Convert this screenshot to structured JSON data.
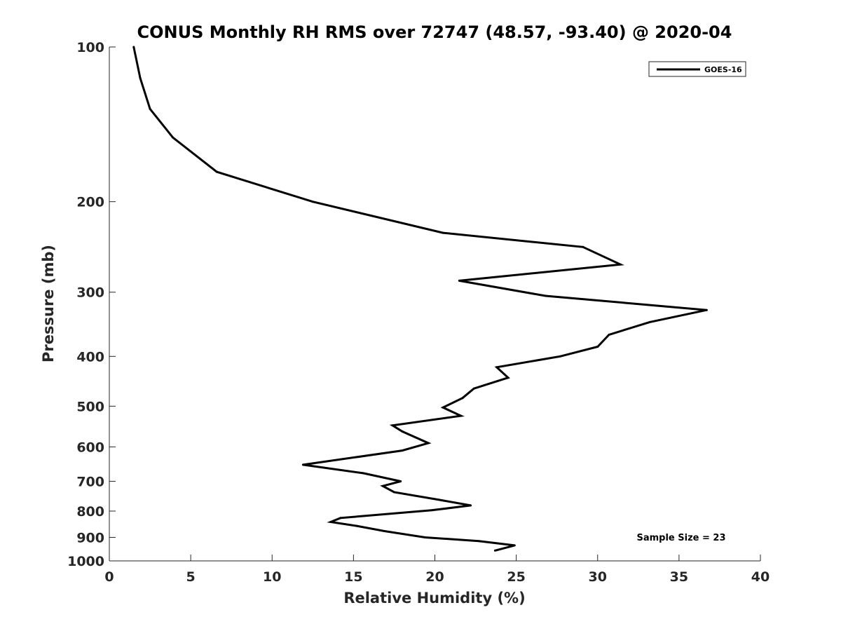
{
  "chart_data": {
    "type": "line",
    "title": "CONUS Monthly RH RMS over 72747 (48.57, -93.40) @ 2020-04",
    "xlabel": "Relative Humidity (%)",
    "ylabel": "Pressure (mb)",
    "xlim": [
      0,
      40
    ],
    "ylim": [
      100,
      1000
    ],
    "y_scale": "log",
    "y_reversed": true,
    "xticks": [
      0,
      5,
      10,
      15,
      20,
      25,
      30,
      35,
      40
    ],
    "yticks": [
      100,
      200,
      300,
      400,
      500,
      600,
      700,
      800,
      900,
      1000
    ],
    "grid": false,
    "legend_placement": "top-right",
    "annotation": "Sample Size = 23",
    "series": [
      {
        "name": "GOES-16",
        "color": "#000000",
        "x": [
          1.5,
          1.9,
          2.5,
          3.9,
          6.6,
          12.5,
          20.5,
          29.1,
          31.4,
          21.5,
          26.8,
          36.7,
          33.2,
          30.7,
          30.0,
          27.7,
          23.8,
          24.5,
          22.4,
          21.7,
          20.5,
          21.6,
          17.4,
          18.0,
          19.6,
          18.0,
          11.9,
          15.6,
          17.9,
          16.8,
          17.5,
          20.2,
          22.2,
          19.8,
          14.2,
          13.6,
          15.2,
          16.9,
          19.4,
          22.7,
          24.9,
          23.7
        ],
        "y": [
          100,
          115,
          132,
          150,
          175,
          200,
          230,
          245,
          265,
          285,
          305,
          325,
          343,
          363,
          383,
          400,
          420,
          440,
          462,
          482,
          503,
          522,
          545,
          560,
          590,
          610,
          650,
          675,
          700,
          715,
          735,
          760,
          780,
          797,
          825,
          840,
          855,
          875,
          900,
          915,
          933,
          955
        ]
      }
    ]
  }
}
